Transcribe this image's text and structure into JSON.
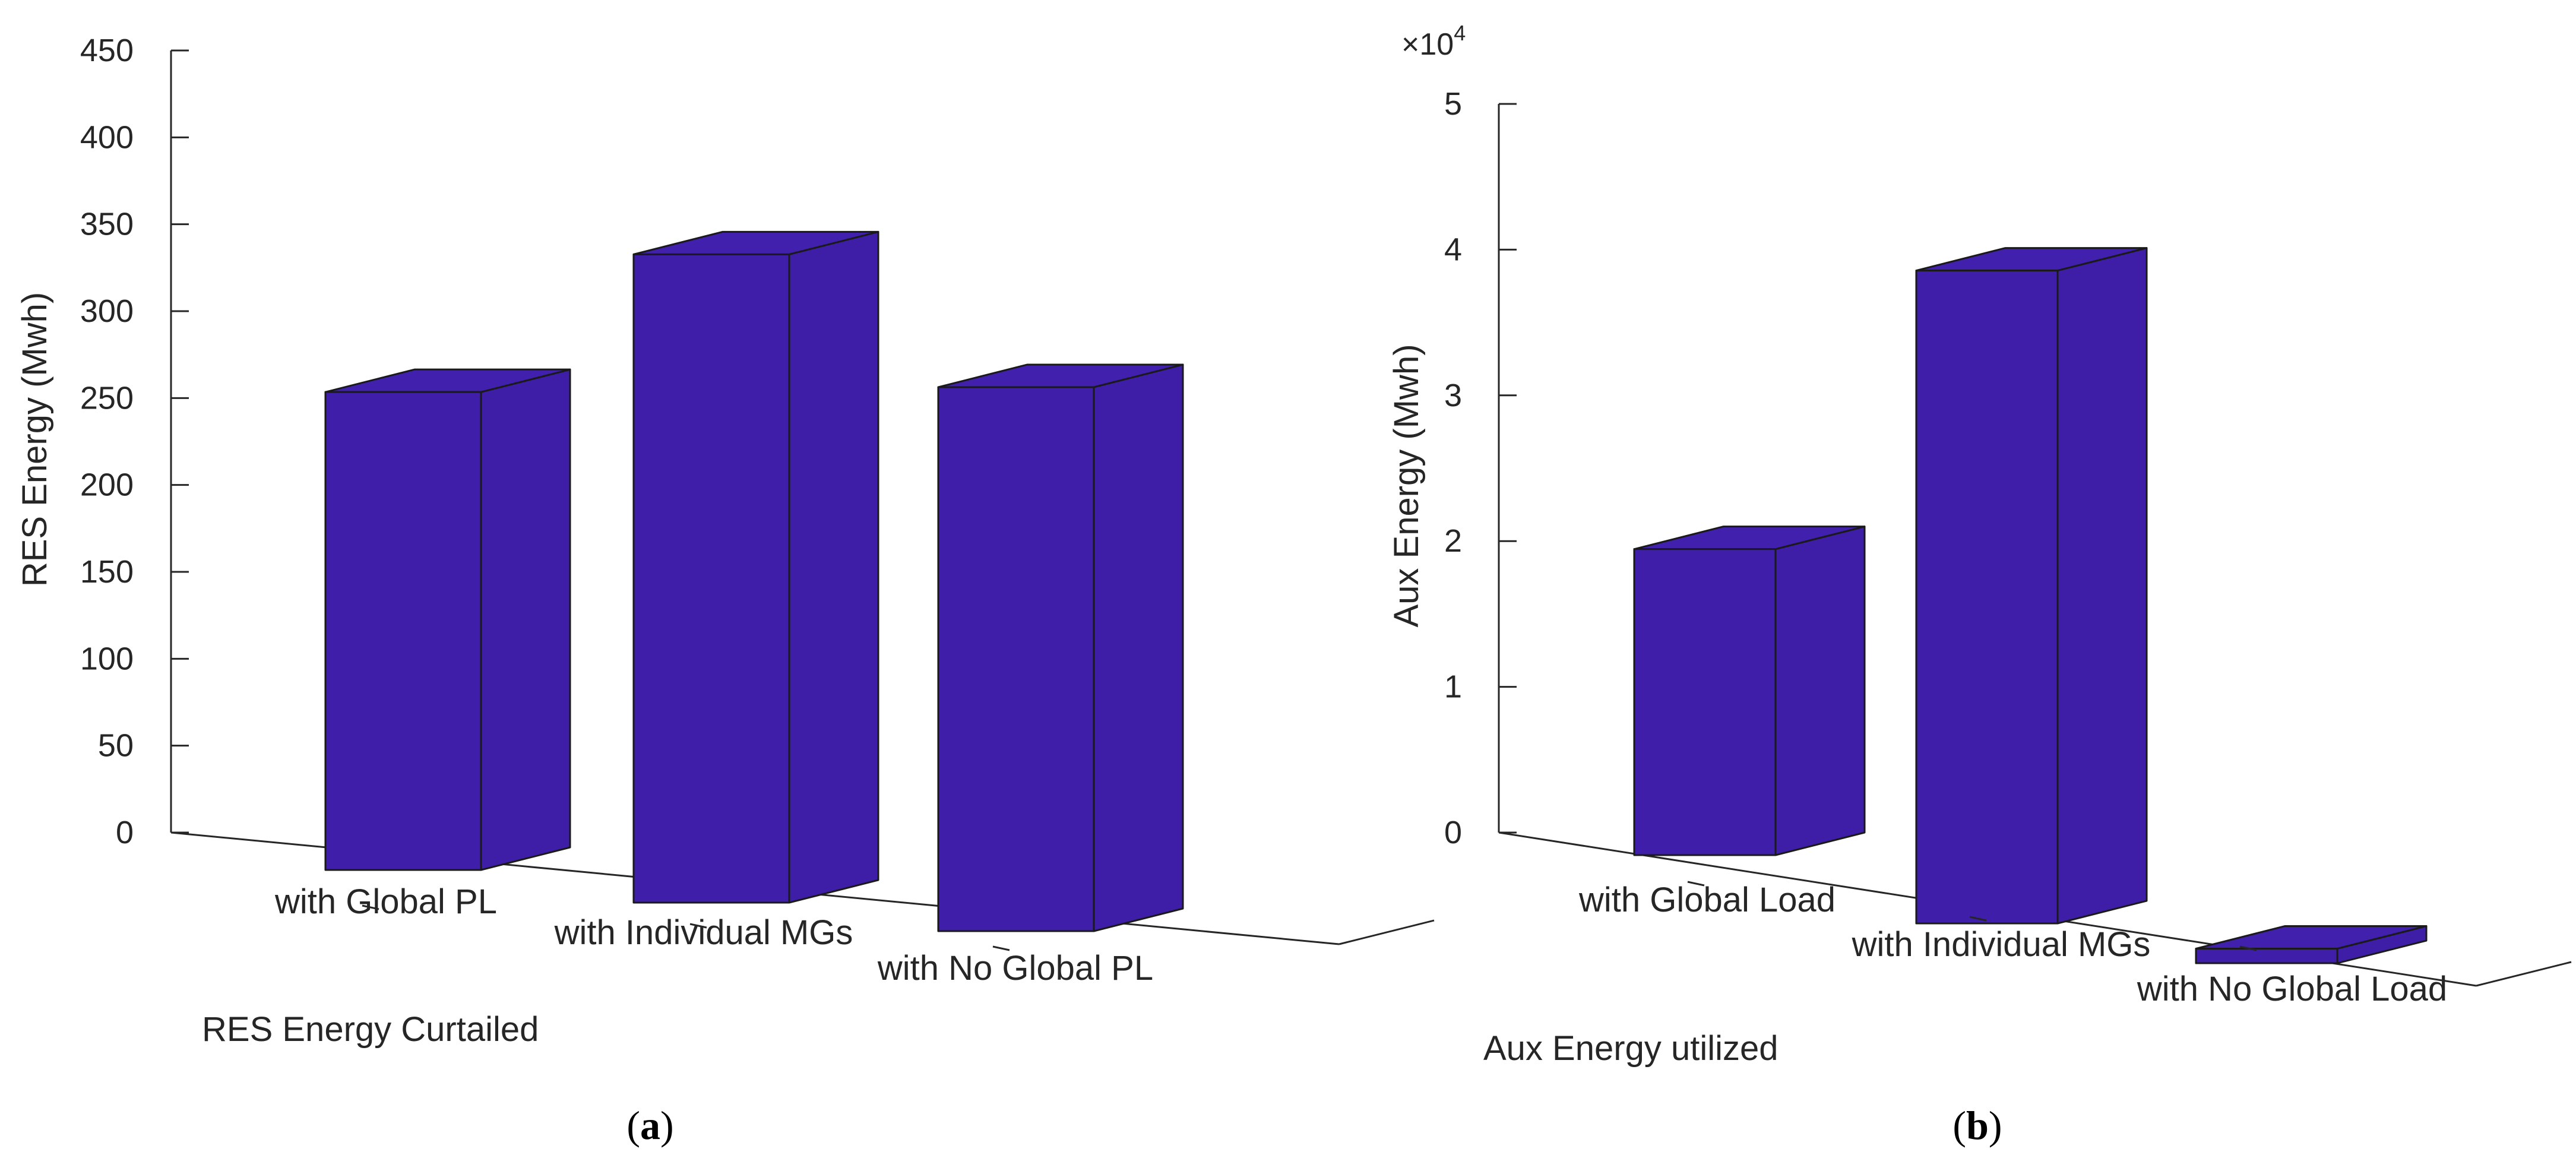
{
  "colors": {
    "bar": "#3f1fa9",
    "axis": "#262626",
    "edge": "#1a1a1a"
  },
  "chart_data": [
    {
      "type": "bar",
      "style": "3d",
      "categories": [
        "with Global PL",
        "with Individual MGs",
        "with No Global PL"
      ],
      "values": [
        275,
        373,
        313
      ],
      "title": "",
      "xlabel": "RES Energy Curtailed",
      "ylabel": "RES Energy (Mwh)",
      "ylim": [
        0,
        450
      ],
      "yticks": [
        0,
        50,
        100,
        150,
        200,
        250,
        300,
        350,
        400,
        450
      ],
      "ytick_labels": [
        "0",
        "50",
        "100",
        "150",
        "200",
        "250",
        "300",
        "350",
        "400",
        "450"
      ],
      "caption": "a"
    },
    {
      "type": "bar",
      "style": "3d",
      "categories": [
        "with Global Load",
        "with Individual MGs",
        "with No Global Load"
      ],
      "values": [
        21000,
        44800,
        1000
      ],
      "title": "",
      "xlabel": "Aux Energy utilized",
      "ylabel": "Aux Energy (Mwh)",
      "ylim": [
        0,
        50000
      ],
      "yticks": [
        0,
        10000,
        20000,
        30000,
        40000,
        50000
      ],
      "ytick_labels": [
        "0",
        "1",
        "2",
        "3",
        "4",
        "5"
      ],
      "exponent_base": "×10",
      "exponent_power": "4",
      "caption": "b"
    }
  ]
}
